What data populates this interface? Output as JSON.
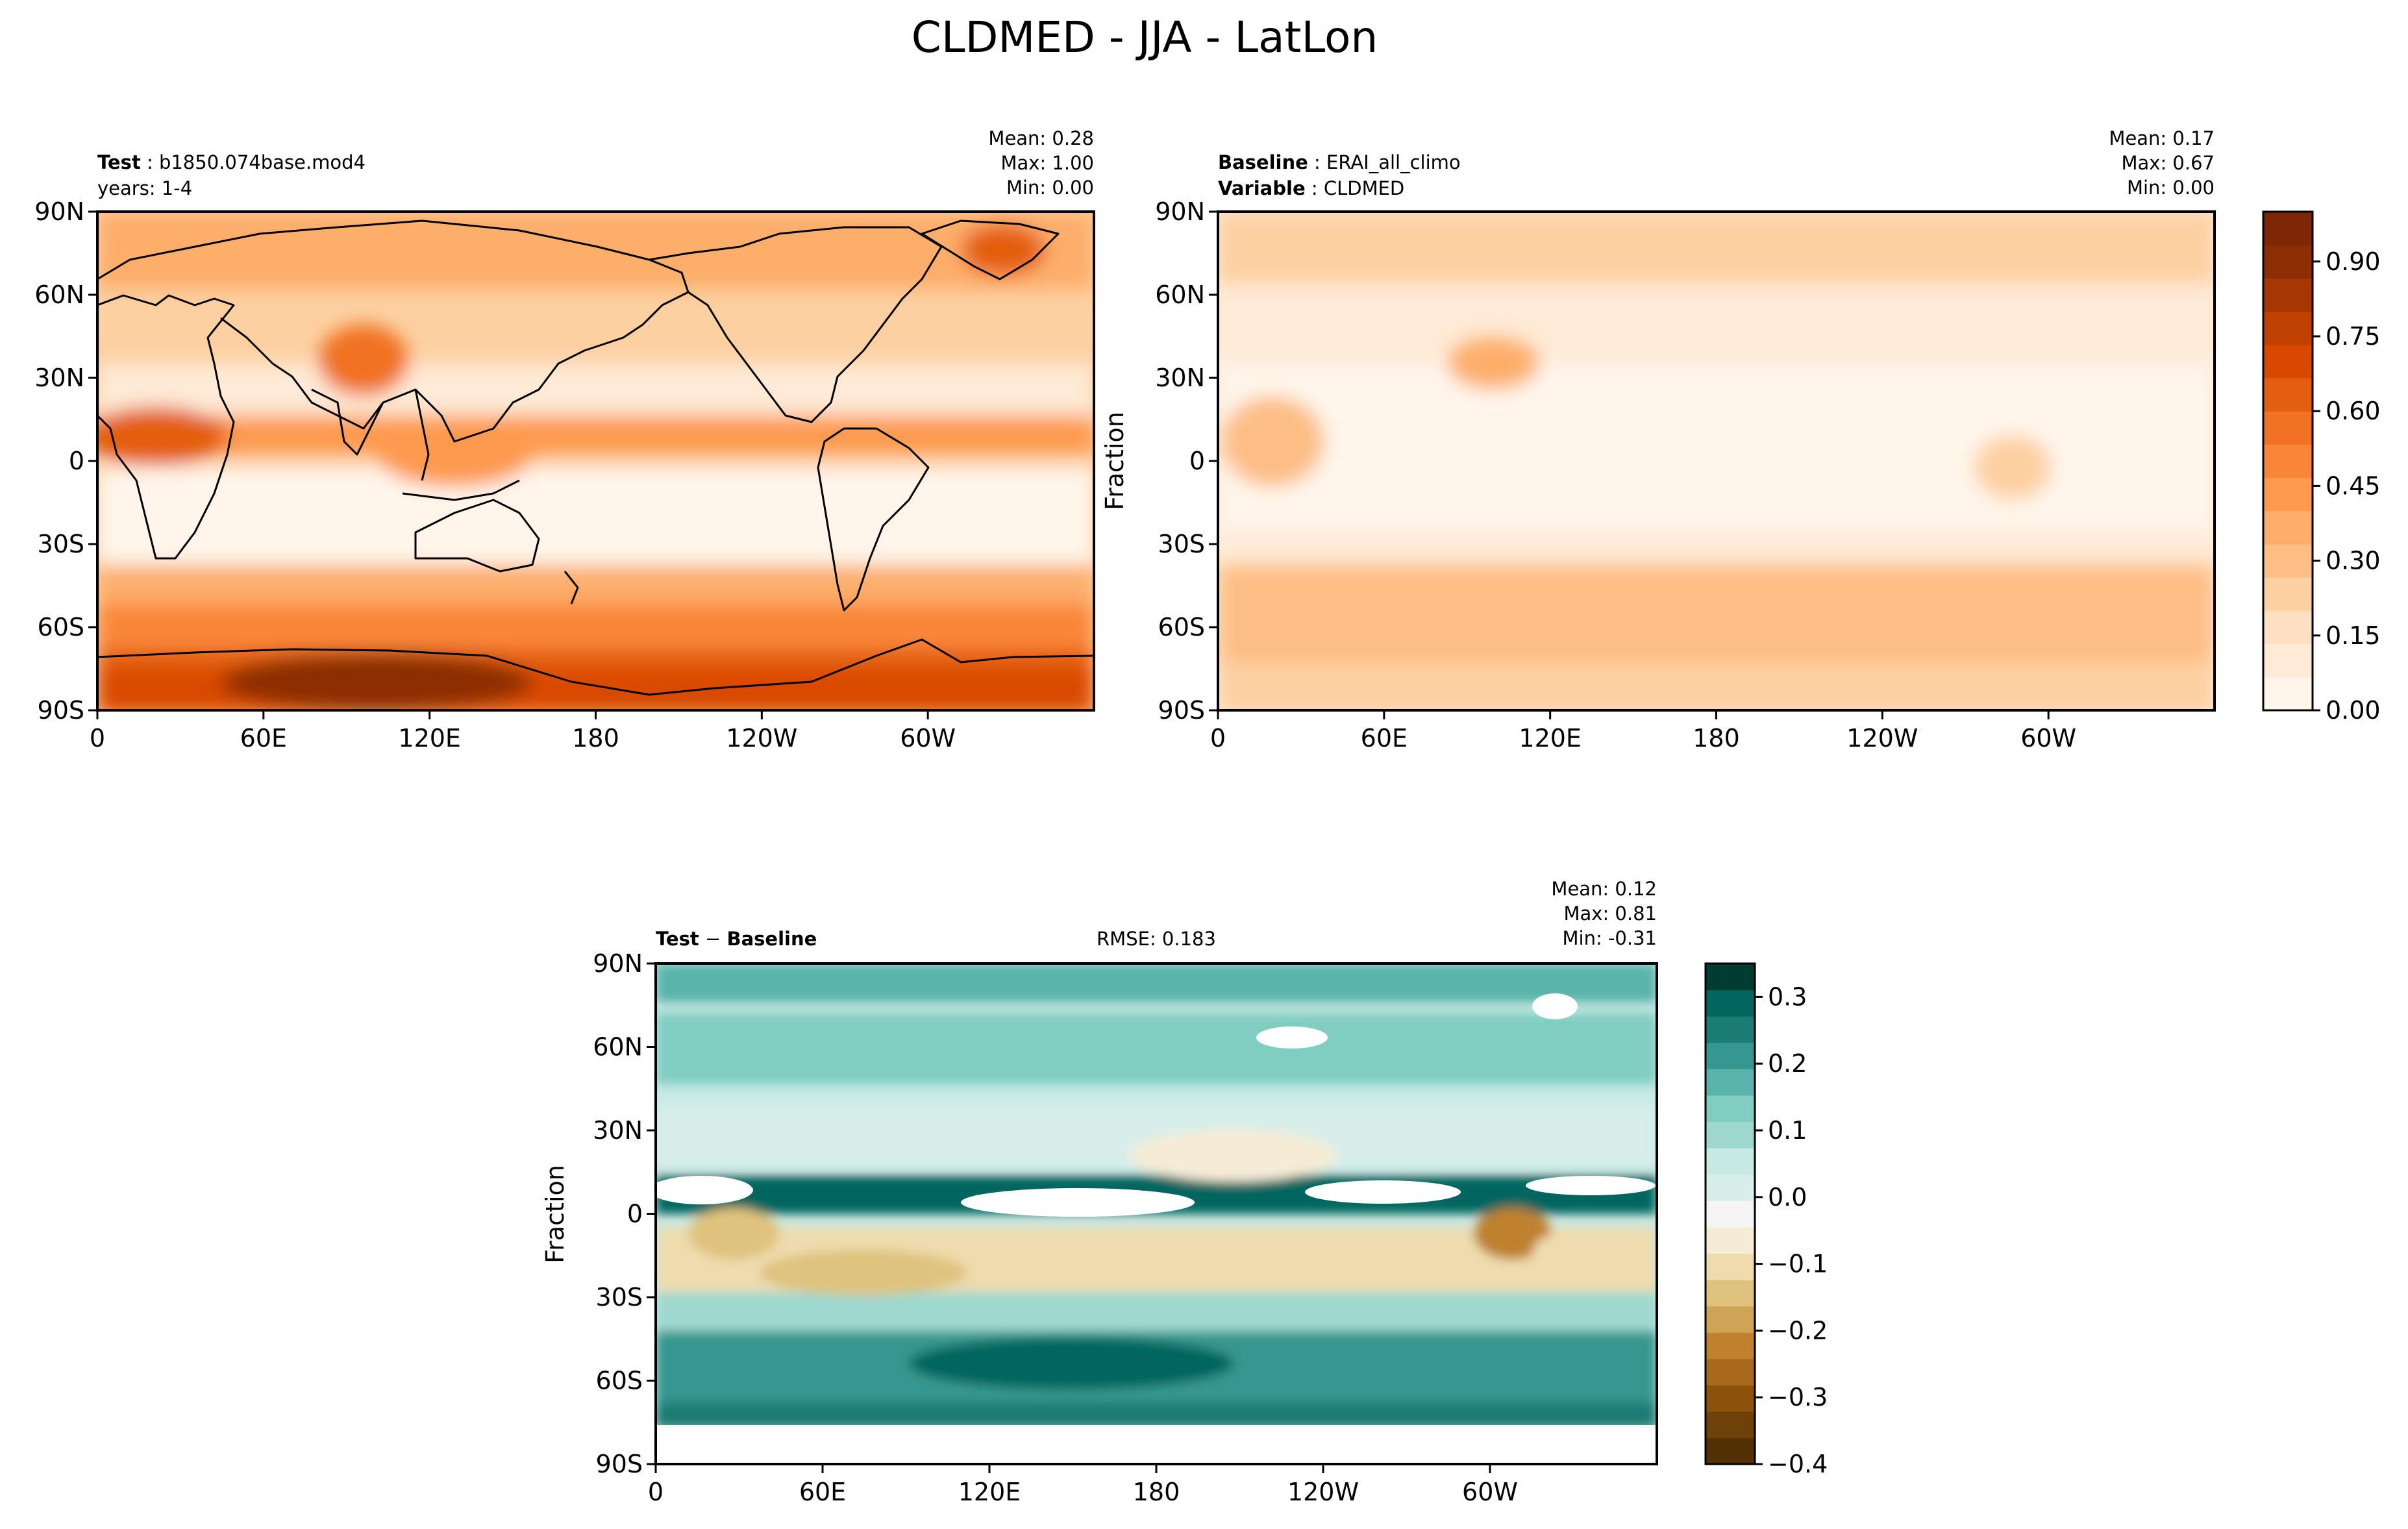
{
  "title": "CLDMED - JJA - LatLon",
  "panels": {
    "test": {
      "name_label": "Test",
      "name_value": "b1850.074base.mod4",
      "years": "years: 1-4",
      "stats": {
        "mean": "Mean:  0.28",
        "max": "Max:  1.00",
        "min": "Min:  0.00"
      }
    },
    "baseline": {
      "name_label": "Baseline",
      "name_value": "ERAI_all_climo",
      "variable_label": "Variable",
      "variable_value": "CLDMED",
      "stats": {
        "mean": "Mean:  0.17",
        "max": "Max:  0.67",
        "min": "Min:  0.00"
      },
      "ylabel": "Fraction"
    },
    "diff": {
      "title_left": "Test",
      "title_right": "Baseline",
      "rmse": "RMSE: 0.183",
      "stats": {
        "mean": "Mean:  0.12",
        "max": "Max:  0.81",
        "min": "Min: -0.31"
      },
      "ylabel": "Fraction"
    }
  },
  "colors": {
    "oranges": [
      "#fff5eb",
      "#feead6",
      "#fddfc1",
      "#fdd0a2",
      "#fdbe85",
      "#fdae6b",
      "#fd9a4f",
      "#f98638",
      "#f07222",
      "#e45e0f",
      "#d94801",
      "#c04002",
      "#a63603",
      "#8c2d04",
      "#7f2704"
    ],
    "brbg": [
      "#543005",
      "#6e4108",
      "#8c510a",
      "#a8691c",
      "#bf812d",
      "#d0a457",
      "#dfc27d",
      "#eedcae",
      "#f6ecd5",
      "#f5f5f5",
      "#d7eeea",
      "#c7eae5",
      "#9fd8cf",
      "#80cdc1",
      "#5ab4ac",
      "#35978f",
      "#1a7c73",
      "#01665e",
      "#003c30"
    ],
    "land": "#000000"
  },
  "chart_data": [
    {
      "type": "heatmap",
      "panel": "test",
      "xticks": [
        "0",
        "60E",
        "120E",
        "180",
        "120W",
        "60W"
      ],
      "yticks": [
        "90N",
        "60N",
        "30N",
        "0",
        "30S",
        "60S",
        "90S"
      ],
      "lon_range": [
        0,
        360
      ],
      "lat_range": [
        -90,
        90
      ],
      "value_range": [
        0.0,
        1.0
      ],
      "mean": 0.28,
      "max": 1.0,
      "min": 0.0
    },
    {
      "type": "heatmap",
      "panel": "baseline",
      "xticks": [
        "0",
        "60E",
        "120E",
        "180",
        "120W",
        "60W"
      ],
      "yticks": [
        "90N",
        "60N",
        "30N",
        "0",
        "30S",
        "60S",
        "90S"
      ],
      "lon_range": [
        0,
        360
      ],
      "lat_range": [
        -90,
        90
      ],
      "value_range": [
        0.0,
        1.0
      ],
      "mean": 0.17,
      "max": 0.67,
      "min": 0.0,
      "ylabel": "Fraction",
      "colorbar": {
        "ticks": [
          "0.00",
          "0.15",
          "0.30",
          "0.45",
          "0.60",
          "0.75",
          "0.90"
        ],
        "range": [
          0.0,
          1.0
        ]
      }
    },
    {
      "type": "heatmap",
      "panel": "diff",
      "xticks": [
        "0",
        "60E",
        "120E",
        "180",
        "120W",
        "60W"
      ],
      "yticks": [
        "90N",
        "60N",
        "30N",
        "0",
        "30S",
        "60S",
        "90S"
      ],
      "lon_range": [
        0,
        360
      ],
      "lat_range": [
        -90,
        90
      ],
      "value_range": [
        -0.4,
        0.35
      ],
      "mean": 0.12,
      "max": 0.81,
      "min": -0.31,
      "rmse": 0.183,
      "ylabel": "Fraction",
      "colorbar": {
        "ticks": [
          "0.3",
          "0.2",
          "0.1",
          "0.0",
          "−0.1",
          "−0.2",
          "−0.3",
          "−0.4"
        ],
        "range": [
          -0.4,
          0.35
        ]
      }
    }
  ]
}
